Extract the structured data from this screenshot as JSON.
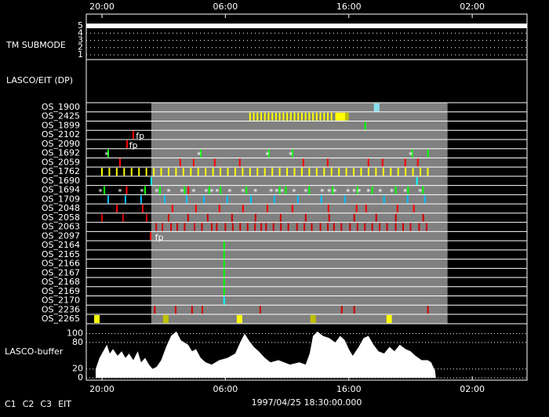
{
  "chart_data": {
    "type": "timeline",
    "xlim": [
      18.73,
      54.44
    ],
    "xticks": [
      {
        "value": 20,
        "label": "20:00"
      },
      {
        "value": 30,
        "label": "06:00"
      },
      {
        "value": 40,
        "label": "16:00"
      },
      {
        "value": 50,
        "label": "02:00"
      }
    ],
    "date_label": "1997/04/25 18:30:00.000",
    "shaded": [
      24,
      48
    ],
    "submode": {
      "label": "TM SUBMODE",
      "ylim": [
        0.5,
        5.5
      ],
      "yticks": [
        5,
        4,
        3,
        2,
        1
      ],
      "value": 5,
      "span": [
        18.73,
        54.44
      ]
    },
    "section_label": "LASCO/EIT (DP)",
    "rows": [
      {
        "label": "OS_1900",
        "spans": [
          {
            "color": "#88e0f0",
            "from": 42.03,
            "to": 42.48
          }
        ]
      },
      {
        "label": "OS_2425",
        "events": [
          {
            "color": "#ffff00",
            "t": [
              32.0,
              32.3,
              32.6,
              32.9,
              33.2,
              33.5,
              33.8,
              34.1,
              34.4,
              34.7,
              35.0,
              35.3,
              35.6,
              35.9,
              36.2,
              36.5,
              36.8,
              37.1,
              37.4,
              37.7,
              38.0,
              38.3,
              38.6
            ]
          }
        ],
        "spans": [
          {
            "color": "#ffff00",
            "from": 38.9,
            "to": 39.7
          },
          {
            "color": "#c0c000",
            "from": 39.7,
            "to": 40.0
          }
        ]
      },
      {
        "label": "OS_1899",
        "events": [
          {
            "color": "#00ff00",
            "t": [
              41.33
            ]
          }
        ]
      },
      {
        "label": "OS_2102",
        "events": [
          {
            "color": "#ff0000",
            "t": [
              22.54
            ]
          }
        ],
        "notes": [
          {
            "text": "fp",
            "t": 22.75
          }
        ]
      },
      {
        "label": "OS_2090",
        "events": [
          {
            "color": "#ff0000",
            "t": [
              22.03
            ]
          }
        ],
        "notes": [
          {
            "text": "fp",
            "t": 22.2
          }
        ]
      },
      {
        "label": "OS_1692",
        "events": [
          {
            "color": "#00ff00",
            "t": [
              20.51,
              28.0,
              33.52,
              35.43,
              45.14,
              46.41
            ]
          }
        ],
        "stars": {
          "text": "*",
          "t": [
            20.38,
            27.87,
            33.4,
            35.3,
            45.02
          ]
        }
      },
      {
        "label": "OS_2059",
        "events": [
          {
            "color": "#ff0000",
            "t": [
              21.46,
              26.35,
              27.43,
              29.14,
              31.17,
              36.32,
              38.29,
              41.59,
              42.73,
              44.57,
              45.59
            ]
          }
        ]
      },
      {
        "label": "OS_1762",
        "events": [
          {
            "color": "#ffff00",
            "t": [
              20.0,
              20.6,
              21.2,
              21.8,
              22.4,
              23.0,
              23.6,
              24.2,
              24.8,
              25.4,
              26.0,
              26.6,
              27.2,
              27.8,
              28.4,
              29.0,
              29.6,
              30.2,
              30.8,
              31.4,
              32.0,
              32.6,
              33.2,
              33.8,
              34.4,
              35.0,
              35.6,
              36.2,
              36.8,
              37.4,
              38.0,
              38.6,
              39.2,
              39.8,
              40.4,
              41.0,
              41.6,
              42.2,
              42.8,
              43.4,
              44.0,
              44.6,
              45.2,
              45.8,
              46.4
            ]
          }
        ]
      },
      {
        "label": "OS_1690",
        "events": [
          {
            "color": "#00ffff",
            "t": [
              24.0,
              45.52
            ]
          }
        ]
      },
      {
        "label": "OS_1694",
        "events": [
          {
            "color": "#00ff00",
            "t": [
              20.2,
              23.5,
              24.7,
              26.7,
              28.7,
              29.6,
              31.7,
              34.4,
              34.9,
              36.8,
              38.7,
              40.7,
              41.9,
              43.8,
              44.8,
              46.0
            ]
          },
          {
            "color": "#ff0000",
            "t": [
              22.0,
              27.0
            ]
          }
        ],
        "stars": {
          "text": "*",
          "t": [
            19.87,
            21.46,
            23.24,
            24.44,
            25.4,
            26.48,
            27.43,
            28.44,
            28.89,
            29.33,
            30.35,
            31.43,
            32.44,
            33.71,
            34.16,
            34.6,
            35.56,
            36.51,
            37.84,
            38.41,
            38.86,
            39.94,
            40.44,
            40.83,
            41.59,
            42.54,
            43.49,
            44.57,
            45.78
          ]
        }
      },
      {
        "label": "OS_1709",
        "events": [
          {
            "color": "#00c0ff",
            "t": [
              20.51,
              21.9,
              23.17,
              25.08,
              26.86,
              28.25,
              30.16,
              32.06,
              33.97,
              35.87,
              37.78,
              39.68,
              42.86,
              44.76,
              46.16
            ]
          }
        ]
      },
      {
        "label": "OS_2048",
        "events": [
          {
            "color": "#ff0000",
            "t": [
              21.21,
              23.3,
              25.71,
              27.62,
              29.52,
              31.43,
              33.4,
              35.43,
              38.35,
              40.63,
              41.4,
              43.94,
              45.27
            ]
          }
        ]
      },
      {
        "label": "OS_2058",
        "events": [
          {
            "color": "#d00000",
            "t": [
              20.0,
              21.71,
              23.62,
              25.4,
              26.98,
              28.57,
              30.54,
              32.44,
              34.48,
              36.51,
              38.41,
              40.44,
              42.22,
              43.81,
              46.03
            ]
          }
        ]
      },
      {
        "label": "OS_2063",
        "events": [
          {
            "color": "#d00000",
            "t": [
              24.4,
              24.9,
              25.6,
              26.1,
              26.7,
              27.5,
              28.1,
              28.9,
              29.3,
              30.0,
              30.6,
              31.2,
              31.8,
              32.4,
              32.9,
              33.3,
              33.9,
              34.5,
              35.1,
              35.8,
              36.4,
              37.0,
              37.7,
              38.3,
              38.8,
              39.4,
              40.1,
              40.7,
              41.3,
              41.9,
              42.5,
              43.1,
              43.8,
              44.4,
              45.0,
              45.7,
              46.3
            ]
          }
        ]
      },
      {
        "label": "OS_2097",
        "events": [
          {
            "color": "#ff0000",
            "t": [
              23.94
            ]
          }
        ],
        "notes": [
          {
            "text": "fp",
            "t": 24.3
          }
        ]
      },
      {
        "label": "OS_2164",
        "events": [
          {
            "color": "#00ff00",
            "t": [
              29.9
            ]
          }
        ]
      },
      {
        "label": "OS_2165",
        "events": [
          {
            "color": "#00ff00",
            "t": [
              29.9
            ]
          }
        ]
      },
      {
        "label": "OS_2166",
        "events": [
          {
            "color": "#00ff00",
            "t": [
              29.9
            ]
          }
        ]
      },
      {
        "label": "OS_2167",
        "events": [
          {
            "color": "#00ff00",
            "t": [
              29.9
            ]
          }
        ]
      },
      {
        "label": "OS_2168",
        "events": [
          {
            "color": "#00ff00",
            "t": [
              29.9
            ]
          }
        ]
      },
      {
        "label": "OS_2169",
        "events": [
          {
            "color": "#00ff00",
            "t": [
              29.9
            ]
          }
        ]
      },
      {
        "label": "OS_2170",
        "events": [
          {
            "color": "#00ffff",
            "t": [
              29.9
            ]
          }
        ]
      },
      {
        "label": "OS_2236",
        "events": [
          {
            "color": "#d00000",
            "t": [
              24.28,
              25.97,
              27.3,
              28.13,
              32.83,
              39.43,
              40.44,
              46.41
            ]
          }
        ]
      },
      {
        "label": "OS_2265",
        "spans": [
          {
            "color": "#ffff00",
            "from": 19.37,
            "to": 19.81
          },
          {
            "color": "#c0c000",
            "from": 24.95,
            "to": 25.4
          },
          {
            "color": "#ffff00",
            "from": 30.92,
            "to": 31.37
          },
          {
            "color": "#c0c000",
            "from": 36.89,
            "to": 37.33
          },
          {
            "color": "#ffff00",
            "from": 43.05,
            "to": 43.49
          }
        ]
      }
    ],
    "buffer": {
      "label": "LASCO-buffer",
      "color": "#ffffff",
      "ylim": [
        0,
        110
      ],
      "yticks": [
        0,
        20,
        80,
        100
      ],
      "x": [
        19.49,
        19.8,
        20.1,
        20.4,
        20.63,
        20.9,
        21.27,
        21.6,
        21.9,
        22.2,
        22.54,
        22.9,
        23.17,
        23.5,
        23.81,
        24.1,
        24.44,
        24.8,
        25.2,
        25.6,
        26.03,
        26.4,
        26.98,
        27.3,
        27.62,
        28.0,
        28.4,
        28.89,
        29.5,
        30.16,
        30.8,
        31.2,
        31.56,
        31.9,
        32.3,
        32.7,
        33.2,
        33.65,
        34.3,
        35.24,
        36.0,
        36.5,
        36.83,
        37.1,
        37.46,
        37.9,
        38.41,
        38.9,
        39.3,
        39.68,
        40.0,
        40.32,
        40.8,
        41.2,
        41.59,
        42.0,
        42.4,
        42.86,
        43.3,
        43.7,
        44.13,
        44.6,
        45.0,
        45.4,
        45.9,
        46.4,
        46.67,
        47.0,
        47.05
      ],
      "values": [
        20,
        45,
        60,
        75,
        55,
        65,
        50,
        60,
        45,
        55,
        40,
        60,
        35,
        45,
        30,
        20,
        25,
        40,
        70,
        95,
        105,
        85,
        75,
        60,
        65,
        45,
        35,
        30,
        40,
        45,
        55,
        80,
        100,
        85,
        70,
        60,
        45,
        35,
        40,
        30,
        35,
        30,
        55,
        95,
        105,
        95,
        90,
        80,
        95,
        85,
        65,
        50,
        70,
        90,
        95,
        75,
        60,
        55,
        70,
        60,
        75,
        65,
        60,
        50,
        40,
        40,
        35,
        15,
        0
      ]
    },
    "legend": [
      {
        "name": "C1",
        "color": "#ff0000"
      },
      {
        "name": "C2",
        "color": "#00ff00"
      },
      {
        "name": "C3",
        "color": "#00ffff"
      },
      {
        "name": "EIT",
        "color": "#ffffff"
      }
    ]
  }
}
